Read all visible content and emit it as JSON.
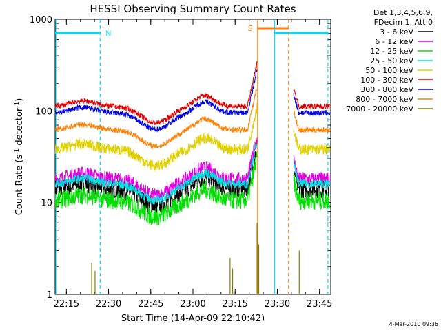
{
  "chart_data": {
    "type": "line",
    "title": "HESSI Observing Summary Count Rates",
    "xlabel": "Start Time (14-Apr-09 22:10:42)",
    "ylabel_main": "Count Rate (s",
    "ylabel_sup1": "-1",
    "ylabel_mid": " detector",
    "ylabel_sup2": "-1",
    "ylabel_end": ")",
    "stamp": "4-Mar-2010 09:36",
    "y_scale": "log",
    "ylim": [
      1,
      1000
    ],
    "xlim_minutes": [
      22.1833,
      23.8167
    ],
    "x_unit_note": "minutes of the hour axis: 22:11 to 23:49",
    "x_ticks": [
      {
        "label": "22:15",
        "t": 22.25
      },
      {
        "label": "22:30",
        "t": 22.5
      },
      {
        "label": "22:45",
        "t": 22.75
      },
      {
        "label": "23:00",
        "t": 23.0
      },
      {
        "label": "23:15",
        "t": 23.25
      },
      {
        "label": "23:30",
        "t": 23.5
      },
      {
        "label": "23:45",
        "t": 23.75
      }
    ],
    "y_ticks": [
      {
        "label": "1",
        "v": 1
      },
      {
        "label": "10",
        "v": 10
      },
      {
        "label": "100",
        "v": 100
      },
      {
        "label": "1000",
        "v": 1000
      }
    ],
    "legend_header": [
      "Det 1,3,4,5,6,9,",
      "FDecim 1, Att 0"
    ],
    "legend_position": "right",
    "markers": [
      {
        "label": "N",
        "color": "#00d8ff",
        "start": "22:11",
        "end": "22:27"
      },
      {
        "label": "S",
        "color": "#ff7f00",
        "start": "23:23",
        "end": "23:34"
      }
    ],
    "night_boundaries": [
      {
        "time": "22:27",
        "color": "#00d8ff",
        "style": "dashed"
      },
      {
        "time": "23:23",
        "color": "#ff7f00",
        "style": "solid"
      },
      {
        "time": "23:34",
        "color": "#ff7f00",
        "style": "dashed"
      },
      {
        "time": "23:29",
        "color": "#00d8ff",
        "style": "solid"
      },
      {
        "time": "23:48",
        "color": "#00d8ff",
        "style": "dashed"
      }
    ],
    "series": [
      {
        "name": "3 - 6 keV",
        "color": "#000000",
        "level": 14,
        "noise": 0.1
      },
      {
        "name": "6 - 12 keV",
        "color": "#e000e0",
        "level": 18,
        "noise": 0.08
      },
      {
        "name": "12 - 25 keV",
        "color": "#00e000",
        "level": 10.5,
        "noise": 0.1
      },
      {
        "name": "25 - 50 keV",
        "color": "#00e0e0",
        "level": 16,
        "noise": 0.05
      },
      {
        "name": "50 - 100 keV",
        "color": "#e0d000",
        "level": 38,
        "noise": 0.06
      },
      {
        "name": "100 - 300 keV",
        "color": "#e00000",
        "level": 112,
        "noise": 0.03
      },
      {
        "name": "300 - 800 keV",
        "color": "#0000e0",
        "level": 95,
        "noise": 0.03
      },
      {
        "name": "800 - 7000 keV",
        "color": "#ff7f00",
        "level": 62,
        "noise": 0.03
      },
      {
        "name": "7000 - 20000 keV",
        "color": "#808000",
        "level": 1,
        "noise": 0
      }
    ]
  }
}
